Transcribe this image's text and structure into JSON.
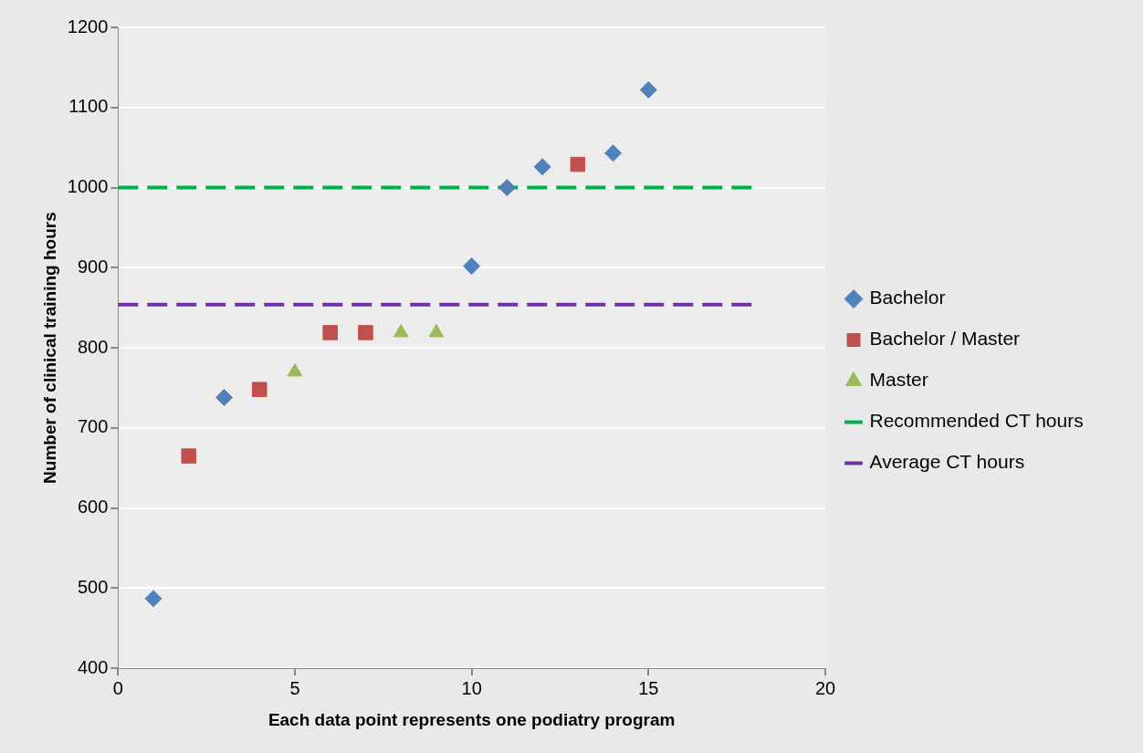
{
  "chart_data": {
    "type": "scatter",
    "xlabel": "Each data point represents one podiatry program",
    "ylabel": "Number of clinical training hours",
    "xlim": [
      0,
      20
    ],
    "xticks": [
      0,
      5,
      10,
      15,
      20
    ],
    "ylim": [
      400,
      1200
    ],
    "yticks": [
      400,
      500,
      600,
      700,
      800,
      900,
      1000,
      1100,
      1200
    ],
    "grid": "y",
    "legend": "right",
    "series": [
      {
        "name": "Bachelor",
        "type": "scatter",
        "marker": "diamond",
        "color": "#4f81bd",
        "x": [
          1,
          3,
          10,
          11,
          12,
          14,
          15
        ],
        "values": [
          487,
          738,
          902,
          1000,
          1026,
          1043,
          1122
        ]
      },
      {
        "name": "Bachelor / Master",
        "type": "scatter",
        "marker": "square",
        "color": "#c0504d",
        "x": [
          2,
          4,
          6,
          7,
          13
        ],
        "values": [
          665,
          748,
          819,
          819,
          1029
        ]
      },
      {
        "name": "Master",
        "type": "scatter",
        "marker": "triangle",
        "color": "#9bbb59",
        "x": [
          5,
          8,
          9
        ],
        "values": [
          770,
          819,
          819
        ]
      },
      {
        "name": "Recommended CT hours",
        "type": "line",
        "line_style": "dashed",
        "marker": "none",
        "color": "#00b050",
        "x": [
          0,
          18
        ],
        "values": [
          1000,
          1000
        ]
      },
      {
        "name": "Average CT hours",
        "type": "line",
        "line_style": "dashed",
        "marker": "none",
        "color": "#7030a0",
        "x": [
          0,
          18
        ],
        "values": [
          854,
          854
        ]
      }
    ]
  }
}
